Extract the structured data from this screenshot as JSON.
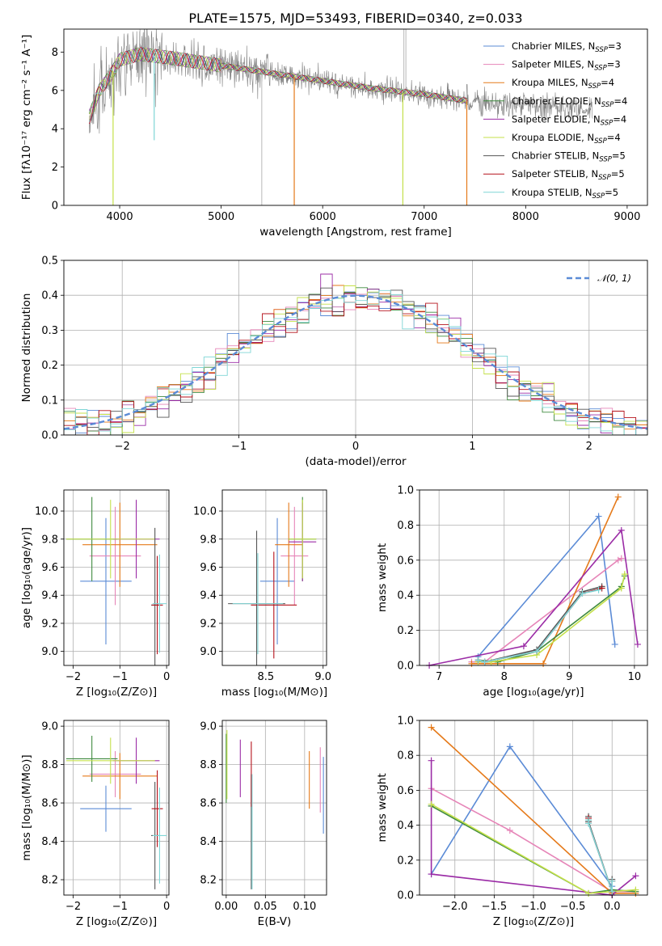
{
  "title": "PLATE=1575, MJD=53493, FIBERID=0340, z=0.033",
  "colors": {
    "chabrier_miles": "#5b8bd6",
    "salpeter_miles": "#e685b8",
    "kroupa_miles": "#e57a1a",
    "chabrier_elodie": "#3f8a3f",
    "salpeter_elodie": "#9b2ca6",
    "kroupa_elodie": "#c4e04a",
    "chabrier_stelib": "#555555",
    "salpeter_stelib": "#b5121b",
    "kroupa_stelib": "#7fd6d6",
    "data": "#808080",
    "gaussian": "#5b8bd6"
  },
  "chart_data": [
    {
      "id": "spectrum",
      "type": "line",
      "xlabel": "wavelength [Angstrom, rest frame]",
      "ylabel": "Flux [fλ10⁻¹⁷ erg cm⁻² s⁻¹ A⁻¹]",
      "xlim": [
        3450,
        9200
      ],
      "ylim": [
        0,
        9.2
      ],
      "xticks": [
        4000,
        5000,
        6000,
        7000,
        8000,
        9000
      ],
      "yticks": [
        0,
        2,
        4,
        6,
        8
      ],
      "legend_position": "top-right",
      "legend": [
        {
          "base": "Chabrier MILES, N",
          "sub": "SSP",
          "tail": "=3",
          "color_key": "chabrier_miles"
        },
        {
          "base": "Salpeter MILES, N",
          "sub": "SSP",
          "tail": "=3",
          "color_key": "salpeter_miles"
        },
        {
          "base": "Kroupa MILES, N",
          "sub": "SSP",
          "tail": "=4",
          "color_key": "kroupa_miles"
        },
        {
          "base": "Chabrier ELODIE, N",
          "sub": "SSP",
          "tail": "=4",
          "color_key": "chabrier_elodie"
        },
        {
          "base": "Salpeter ELODIE, N",
          "sub": "SSP",
          "tail": "=4",
          "color_key": "salpeter_elodie"
        },
        {
          "base": "Kroupa ELODIE, N",
          "sub": "SSP",
          "tail": "=4",
          "color_key": "kroupa_elodie"
        },
        {
          "base": "Chabrier STELIB, N",
          "sub": "SSP",
          "tail": "=5",
          "color_key": "chabrier_stelib"
        },
        {
          "base": "Salpeter STELIB, N",
          "sub": "SSP",
          "tail": "=5",
          "color_key": "salpeter_stelib"
        },
        {
          "base": "Kroupa STELIB, N",
          "sub": "SSP",
          "tail": "=5",
          "color_key": "kroupa_stelib"
        }
      ],
      "data_range": [
        3700,
        8660
      ],
      "model_range": [
        3700,
        7430
      ],
      "continuum": [
        [
          3700,
          4.6
        ],
        [
          3800,
          6.0
        ],
        [
          3900,
          6.7
        ],
        [
          4000,
          7.6
        ],
        [
          4200,
          7.9
        ],
        [
          4500,
          7.7
        ],
        [
          5000,
          7.3
        ],
        [
          5500,
          6.9
        ],
        [
          6000,
          6.5
        ],
        [
          6500,
          6.1
        ],
        [
          7000,
          5.8
        ],
        [
          7500,
          5.4
        ],
        [
          8000,
          5.2
        ],
        [
          8660,
          5.0
        ]
      ],
      "model_dips": [
        {
          "x": 3935,
          "y": 0.0,
          "color_key": "kroupa_elodie"
        },
        {
          "x": 4340,
          "y": 3.4,
          "color_key": "kroupa_stelib"
        },
        {
          "x": 5720,
          "y": 0.0,
          "color_key": "kroupa_miles"
        },
        {
          "x": 6790,
          "y": 0.0,
          "color_key": "kroupa_elodie"
        },
        {
          "x": 7420,
          "y": 0.0,
          "color_key": "kroupa_miles"
        }
      ]
    },
    {
      "id": "residuals",
      "type": "histogram",
      "xlabel": "(data-model)/error",
      "ylabel": "Normed distribution",
      "xlim": [
        -2.5,
        2.5
      ],
      "ylim": [
        0,
        0.5
      ],
      "xticks": [
        -2,
        -1,
        0,
        1,
        2
      ],
      "yticks": [
        0.0,
        0.1,
        0.2,
        0.3,
        0.4,
        0.5
      ],
      "grid": true,
      "legend_label": "𝒩(0, 1)",
      "legend_position": "top-right",
      "bin_width": 0.1,
      "bin_start": -2.5
    },
    {
      "id": "age_vs_Z",
      "type": "errorbar",
      "xlabel": "Z [log₁₀(Z/Z⊙)]",
      "ylabel": "age  [log₁₀(age/yr)]",
      "xlim": [
        -2.2,
        0.05
      ],
      "ylim": [
        8.9,
        10.15
      ],
      "xticks": [
        -2,
        -1,
        0
      ],
      "yticks": [
        9.0,
        9.2,
        9.4,
        9.6,
        9.8,
        10.0
      ],
      "grid": true,
      "points": [
        {
          "color_key": "chabrier_miles",
          "x": -1.3,
          "y": 9.5,
          "xe": 0.55,
          "ye": 0.45
        },
        {
          "color_key": "salpeter_miles",
          "x": -1.1,
          "y": 9.68,
          "xe": 0.55,
          "ye": 0.35
        },
        {
          "color_key": "kroupa_miles",
          "x": -1.0,
          "y": 9.76,
          "xe": 0.8,
          "ye": 0.3
        },
        {
          "color_key": "chabrier_elodie",
          "x": -1.6,
          "y": 9.8,
          "xe": 0.55,
          "ye": 0.3
        },
        {
          "color_key": "salpeter_elodie",
          "x": -0.65,
          "y": 9.8,
          "xe": 0.5,
          "ye": 0.28
        },
        {
          "color_key": "kroupa_elodie",
          "x": -1.2,
          "y": 9.8,
          "xe": 0.95,
          "ye": 0.28
        },
        {
          "color_key": "chabrier_stelib",
          "x": -0.25,
          "y": 9.33,
          "xe": 0.08,
          "ye": 0.55
        },
        {
          "color_key": "salpeter_stelib",
          "x": -0.2,
          "y": 9.33,
          "xe": 0.12,
          "ye": 0.35
        },
        {
          "color_key": "kroupa_stelib",
          "x": -0.15,
          "y": 9.34,
          "xe": 0.15,
          "ye": 0.35
        }
      ]
    },
    {
      "id": "age_vs_mass",
      "type": "errorbar",
      "xlabel": "mass [log₁₀(M/M⊙)]",
      "xlim": [
        8.12,
        9.03
      ],
      "ylim": [
        8.9,
        10.15
      ],
      "xticks": [
        8.5,
        9.0
      ],
      "yticks": [
        9.0,
        9.2,
        9.4,
        9.6,
        9.8,
        10.0
      ],
      "grid": true,
      "points": [
        {
          "color_key": "chabrier_miles",
          "x": 8.6,
          "y": 9.5,
          "xe": 0.15,
          "ye": 0.45
        },
        {
          "color_key": "salpeter_miles",
          "x": 8.75,
          "y": 9.68,
          "xe": 0.12,
          "ye": 0.35
        },
        {
          "color_key": "kroupa_miles",
          "x": 8.7,
          "y": 9.76,
          "xe": 0.12,
          "ye": 0.3
        },
        {
          "color_key": "chabrier_elodie",
          "x": 8.82,
          "y": 9.8,
          "xe": 0.12,
          "ye": 0.3
        },
        {
          "color_key": "salpeter_elodie",
          "x": 8.82,
          "y": 9.78,
          "xe": 0.12,
          "ye": 0.28
        },
        {
          "color_key": "kroupa_elodie",
          "x": 8.82,
          "y": 9.8,
          "xe": 0.12,
          "ye": 0.28
        },
        {
          "color_key": "chabrier_stelib",
          "x": 8.42,
          "y": 9.34,
          "xe": 0.25,
          "ye": 0.52
        },
        {
          "color_key": "salpeter_stelib",
          "x": 8.57,
          "y": 9.33,
          "xe": 0.2,
          "ye": 0.38
        },
        {
          "color_key": "kroupa_stelib",
          "x": 8.43,
          "y": 9.34,
          "xe": 0.22,
          "ye": 0.36
        }
      ]
    },
    {
      "id": "weight_vs_age",
      "type": "line",
      "xlabel": "age  [log₁₀(age/yr)]",
      "ylabel": "mass weight",
      "xlim": [
        6.7,
        10.2
      ],
      "ylim": [
        0,
        1.0
      ],
      "xticks": [
        7,
        8,
        9,
        10
      ],
      "yticks": [
        0.0,
        0.2,
        0.4,
        0.6,
        0.8,
        1.0
      ],
      "grid": true,
      "series": [
        {
          "color_key": "chabrier_miles",
          "x": [
            7.6,
            9.45,
            9.7
          ],
          "y": [
            0.05,
            0.85,
            0.12
          ]
        },
        {
          "color_key": "salpeter_miles",
          "x": [
            7.5,
            7.7,
            9.75,
            9.8
          ],
          "y": [
            0.02,
            0.02,
            0.6,
            0.61
          ]
        },
        {
          "color_key": "kroupa_miles",
          "x": [
            7.5,
            8.6,
            9.75
          ],
          "y": [
            0.01,
            0.01,
            0.96
          ]
        },
        {
          "color_key": "chabrier_elodie",
          "x": [
            7.6,
            7.9,
            8.5,
            9.8,
            9.85
          ],
          "y": [
            0.03,
            0.02,
            0.08,
            0.45,
            0.51
          ]
        },
        {
          "color_key": "salpeter_elodie",
          "x": [
            6.85,
            8.3,
            9.8,
            10.05
          ],
          "y": [
            0.0,
            0.11,
            0.77,
            0.12
          ]
        },
        {
          "color_key": "kroupa_elodie",
          "x": [
            7.6,
            7.8,
            8.5,
            9.8,
            9.85
          ],
          "y": [
            0.02,
            0.02,
            0.06,
            0.44,
            0.52
          ]
        },
        {
          "color_key": "chabrier_stelib",
          "x": [
            7.6,
            7.7,
            8.5,
            9.2,
            9.5
          ],
          "y": [
            0.03,
            0.02,
            0.09,
            0.42,
            0.45
          ]
        },
        {
          "color_key": "salpeter_stelib",
          "x": [
            7.6,
            7.7,
            8.5,
            9.2,
            9.5
          ],
          "y": [
            0.03,
            0.02,
            0.08,
            0.41,
            0.44
          ]
        },
        {
          "color_key": "kroupa_stelib",
          "x": [
            7.6,
            7.7,
            8.5,
            9.2,
            9.45
          ],
          "y": [
            0.03,
            0.02,
            0.08,
            0.41,
            0.43
          ]
        }
      ]
    },
    {
      "id": "mass_vs_Z",
      "type": "errorbar",
      "xlabel": "Z [log₁₀(Z/Z⊙)]",
      "ylabel": "mass [log₁₀(M/M⊙)]",
      "xlim": [
        -2.2,
        0.05
      ],
      "ylim": [
        8.12,
        9.03
      ],
      "xticks": [
        -2,
        -1,
        0
      ],
      "yticks": [
        8.2,
        8.4,
        8.6,
        8.8,
        9.0
      ],
      "grid": true,
      "points": [
        {
          "color_key": "chabrier_miles",
          "x": -1.3,
          "y": 8.57,
          "xe": 0.55,
          "ye": 0.12
        },
        {
          "color_key": "salpeter_miles",
          "x": -1.1,
          "y": 8.75,
          "xe": 0.55,
          "ye": 0.12
        },
        {
          "color_key": "kroupa_miles",
          "x": -1.0,
          "y": 8.74,
          "xe": 0.8,
          "ye": 0.12
        },
        {
          "color_key": "chabrier_elodie",
          "x": -1.6,
          "y": 8.83,
          "xe": 0.55,
          "ye": 0.12
        },
        {
          "color_key": "salpeter_elodie",
          "x": -0.65,
          "y": 8.82,
          "xe": 0.5,
          "ye": 0.12
        },
        {
          "color_key": "kroupa_elodie",
          "x": -1.2,
          "y": 8.82,
          "xe": 0.95,
          "ye": 0.12
        },
        {
          "color_key": "chabrier_stelib",
          "x": -0.25,
          "y": 8.43,
          "xe": 0.08,
          "ye": 0.28
        },
        {
          "color_key": "salpeter_stelib",
          "x": -0.2,
          "y": 8.57,
          "xe": 0.12,
          "ye": 0.2
        },
        {
          "color_key": "kroupa_stelib",
          "x": -0.15,
          "y": 8.43,
          "xe": 0.15,
          "ye": 0.25
        }
      ]
    },
    {
      "id": "mass_vs_EBV",
      "type": "errorbar",
      "xlabel": "E(B-V)",
      "xlim": [
        -0.005,
        0.128
      ],
      "ylim": [
        8.12,
        9.03
      ],
      "xticks": [
        0.0,
        0.05,
        0.1
      ],
      "yticks": [
        8.2,
        8.4,
        8.6,
        8.8,
        9.0
      ],
      "grid": true,
      "points": [
        {
          "color_key": "chabrier_miles",
          "x": 0.124,
          "y": 8.64,
          "xe": 0.0,
          "ye": 0.2
        },
        {
          "color_key": "salpeter_miles",
          "x": 0.12,
          "y": 8.72,
          "xe": 0.0,
          "ye": 0.17
        },
        {
          "color_key": "kroupa_miles",
          "x": 0.106,
          "y": 8.72,
          "xe": 0.0,
          "ye": 0.15
        },
        {
          "color_key": "chabrier_elodie",
          "x": 0.0,
          "y": 8.78,
          "xe": 0.0,
          "ye": 0.18
        },
        {
          "color_key": "salpeter_elodie",
          "x": 0.018,
          "y": 8.78,
          "xe": 0.0,
          "ye": 0.15
        },
        {
          "color_key": "kroupa_elodie",
          "x": 0.001,
          "y": 8.8,
          "xe": 0.0,
          "ye": 0.18
        },
        {
          "color_key": "chabrier_stelib",
          "x": 0.032,
          "y": 8.45,
          "xe": 0.0,
          "ye": 0.3
        },
        {
          "color_key": "salpeter_stelib",
          "x": 0.032,
          "y": 8.75,
          "xe": 0.0,
          "ye": 0.17
        },
        {
          "color_key": "kroupa_stelib",
          "x": 0.033,
          "y": 8.45,
          "xe": 0.0,
          "ye": 0.3
        }
      ]
    },
    {
      "id": "weight_vs_Z",
      "type": "line",
      "xlabel": "Z [log₁₀(Z/Z⊙)]",
      "ylabel": "mass weight",
      "xlim": [
        -2.45,
        0.45
      ],
      "ylim": [
        0,
        1.0
      ],
      "xticks": [
        -2.0,
        -1.5,
        -1.0,
        -0.5,
        0.0
      ],
      "yticks": [
        0.0,
        0.2,
        0.4,
        0.6,
        0.8,
        1.0
      ],
      "grid": true,
      "series": [
        {
          "color_key": "chabrier_miles",
          "x": [
            -2.3,
            -1.3,
            0.0
          ],
          "y": [
            0.12,
            0.85,
            0.05
          ]
        },
        {
          "color_key": "salpeter_miles",
          "x": [
            -2.3,
            -1.3,
            0.0,
            0.3
          ],
          "y": [
            0.61,
            0.37,
            0.02,
            0.02
          ]
        },
        {
          "color_key": "kroupa_miles",
          "x": [
            -2.3,
            0.0,
            0.3
          ],
          "y": [
            0.96,
            0.01,
            0.01
          ]
        },
        {
          "color_key": "chabrier_elodie",
          "x": [
            -2.3,
            -0.3,
            0.0,
            0.3
          ],
          "y": [
            0.51,
            0.01,
            0.03,
            0.02
          ]
        },
        {
          "color_key": "salpeter_elodie",
          "x": [
            -2.3,
            -2.3,
            0.0,
            0.3
          ],
          "y": [
            0.77,
            0.12,
            0.0,
            0.11
          ]
        },
        {
          "color_key": "kroupa_elodie",
          "x": [
            -2.3,
            -0.3,
            0.0,
            0.3
          ],
          "y": [
            0.52,
            0.01,
            0.02,
            0.03
          ]
        },
        {
          "color_key": "chabrier_stelib",
          "x": [
            -0.3,
            -0.3,
            0.0,
            0.0
          ],
          "y": [
            0.45,
            0.42,
            0.02,
            0.09
          ]
        },
        {
          "color_key": "salpeter_stelib",
          "x": [
            -0.3,
            -0.3,
            0.0,
            0.0
          ],
          "y": [
            0.44,
            0.41,
            0.02,
            0.08
          ]
        },
        {
          "color_key": "kroupa_stelib",
          "x": [
            -0.3,
            -0.3,
            0.0,
            0.0
          ],
          "y": [
            0.43,
            0.41,
            0.02,
            0.08
          ]
        }
      ]
    }
  ]
}
